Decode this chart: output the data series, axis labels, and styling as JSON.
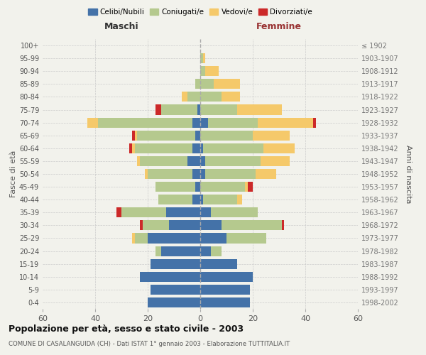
{
  "age_groups": [
    "0-4",
    "5-9",
    "10-14",
    "15-19",
    "20-24",
    "25-29",
    "30-34",
    "35-39",
    "40-44",
    "45-49",
    "50-54",
    "55-59",
    "60-64",
    "65-69",
    "70-74",
    "75-79",
    "80-84",
    "85-89",
    "90-94",
    "95-99",
    "100+"
  ],
  "birth_years": [
    "1998-2002",
    "1993-1997",
    "1988-1992",
    "1983-1987",
    "1978-1982",
    "1973-1977",
    "1968-1972",
    "1963-1967",
    "1958-1962",
    "1953-1957",
    "1948-1952",
    "1943-1947",
    "1938-1942",
    "1933-1937",
    "1928-1932",
    "1923-1927",
    "1918-1922",
    "1913-1917",
    "1908-1912",
    "1903-1907",
    "≤ 1902"
  ],
  "males": {
    "celibi": [
      20,
      19,
      23,
      19,
      15,
      20,
      12,
      13,
      3,
      2,
      3,
      5,
      3,
      2,
      3,
      1,
      0,
      0,
      0,
      0,
      0
    ],
    "coniugati": [
      0,
      0,
      0,
      0,
      2,
      5,
      10,
      17,
      13,
      15,
      17,
      18,
      22,
      22,
      36,
      14,
      5,
      2,
      0,
      0,
      0
    ],
    "vedovi": [
      0,
      0,
      0,
      0,
      0,
      1,
      0,
      0,
      0,
      0,
      1,
      1,
      1,
      1,
      4,
      0,
      2,
      0,
      0,
      0,
      0
    ],
    "divorziati": [
      0,
      0,
      0,
      0,
      0,
      0,
      1,
      2,
      0,
      0,
      0,
      0,
      1,
      1,
      0,
      2,
      0,
      0,
      0,
      0,
      0
    ]
  },
  "females": {
    "nubili": [
      19,
      19,
      20,
      14,
      4,
      10,
      8,
      4,
      1,
      0,
      2,
      2,
      1,
      0,
      3,
      0,
      0,
      0,
      0,
      0,
      0
    ],
    "coniugate": [
      0,
      0,
      0,
      0,
      4,
      15,
      23,
      18,
      13,
      17,
      19,
      21,
      23,
      20,
      19,
      14,
      8,
      5,
      2,
      1,
      0
    ],
    "vedove": [
      0,
      0,
      0,
      0,
      0,
      0,
      0,
      0,
      2,
      1,
      8,
      11,
      12,
      14,
      21,
      17,
      7,
      10,
      5,
      1,
      0
    ],
    "divorziate": [
      0,
      0,
      0,
      0,
      0,
      0,
      1,
      0,
      0,
      2,
      0,
      0,
      0,
      0,
      1,
      0,
      0,
      0,
      0,
      0,
      0
    ]
  },
  "colors": {
    "celibi": "#4472A8",
    "coniugati": "#B5C98E",
    "vedovi": "#F5C96A",
    "divorziati": "#CC2929"
  },
  "title": "Popolazione per età, sesso e stato civile - 2003",
  "subtitle": "COMUNE DI CASALANGUIDA (CH) - Dati ISTAT 1° gennaio 2003 - Elaborazione TUTTITALIA.IT",
  "xlabel_left": "Maschi",
  "xlabel_right": "Femmine",
  "ylabel_left": "Fasce di età",
  "ylabel_right": "Anni di nascita",
  "xlim": 60,
  "bg_color": "#F2F2EC",
  "grid_color": "#cccccc"
}
